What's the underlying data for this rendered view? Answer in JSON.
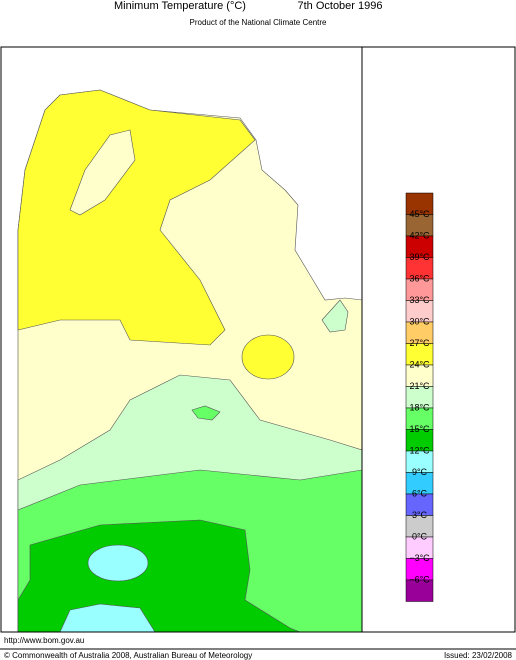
{
  "header": {
    "title": "Minimum Temperature (°C)",
    "date": "7th October 1996",
    "subtitle": "Product of the National Climate Centre"
  },
  "legend": {
    "colors": [
      "#993300",
      "#996633",
      "#cc0000",
      "#ff3333",
      "#ff9999",
      "#ffcccc",
      "#ffcc66",
      "#ffff33",
      "#ffffcc",
      "#ccffcc",
      "#66ff66",
      "#00cc00",
      "#99ffff",
      "#33ccff",
      "#6666ff",
      "#cccccc",
      "#ffccff",
      "#ff00ff",
      "#990099"
    ],
    "labels": [
      "45°C",
      "42°C",
      "39°C",
      "36°C",
      "33°C",
      "30°C",
      "27°C",
      "24°C",
      "21°C",
      "18°C",
      "15°C",
      "12°C",
      "9°C",
      "6°C",
      "3°C",
      "0°C",
      "−3°C",
      "−6°C"
    ]
  },
  "footer": {
    "url": "http://www.bom.gov.au",
    "copyright": "© Commonwealth of Australia 2008, Australian Bureau of Meteorology",
    "issued": "Issued: 23/02/2008"
  }
}
